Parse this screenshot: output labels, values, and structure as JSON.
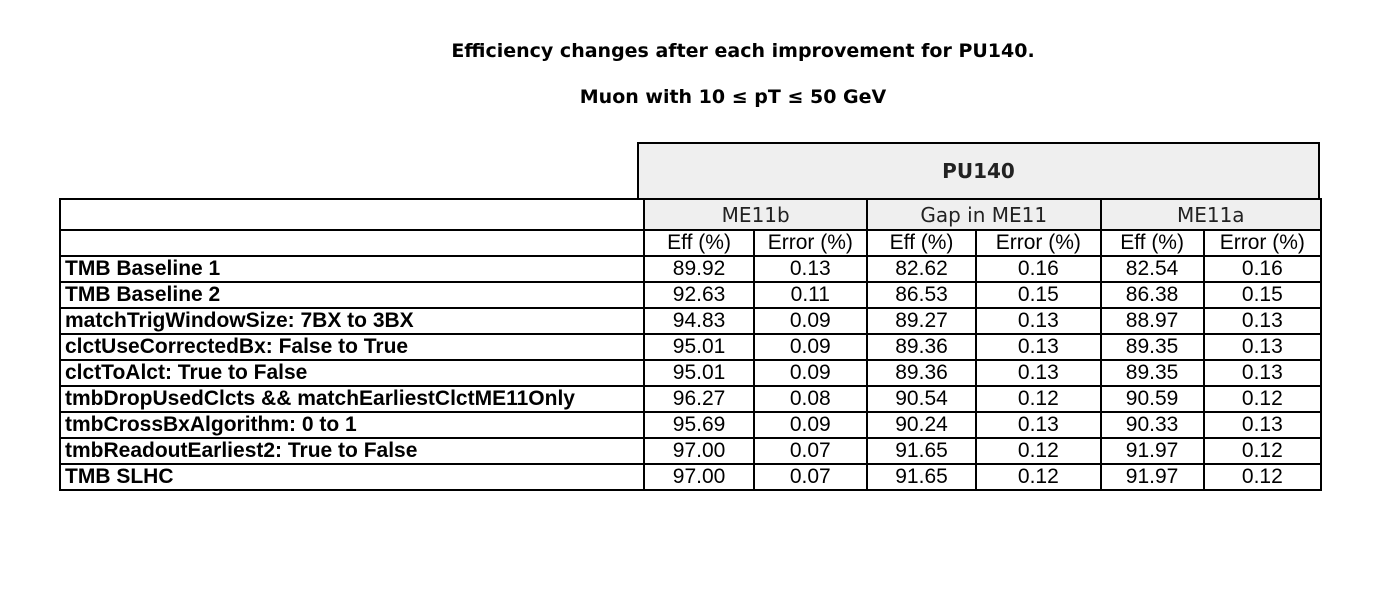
{
  "title": "Efficiency changes after each improvement for PU140.",
  "subtitle": "Muon with 10 ≤ pT ≤ 50  GeV",
  "table": {
    "pileup_label": "PU140",
    "groups": [
      "ME11b",
      "Gap in ME11",
      "ME11a"
    ],
    "columns": [
      "Eff (%)",
      "Error (%)",
      "Eff (%)",
      "Error (%)",
      "Eff (%)",
      "Error (%)"
    ],
    "rows": [
      {
        "label": "TMB Baseline 1",
        "values": [
          "89.92",
          "0.13",
          "82.62",
          "0.16",
          "82.54",
          "0.16"
        ]
      },
      {
        "label": "TMB Baseline 2",
        "values": [
          "92.63",
          "0.11",
          "86.53",
          "0.15",
          "86.38",
          "0.15"
        ]
      },
      {
        "label": "matchTrigWindowSize: 7BX to 3BX",
        "values": [
          "94.83",
          "0.09",
          "89.27",
          "0.13",
          "88.97",
          "0.13"
        ]
      },
      {
        "label": "clctUseCorrectedBx: False to True",
        "values": [
          "95.01",
          "0.09",
          "89.36",
          "0.13",
          "89.35",
          "0.13"
        ]
      },
      {
        "label": "clctToAlct: True to False",
        "values": [
          "95.01",
          "0.09",
          "89.36",
          "0.13",
          "89.35",
          "0.13"
        ]
      },
      {
        "label": "tmbDropUsedClcts && matchEarliestClctME11Only",
        "values": [
          "96.27",
          "0.08",
          "90.54",
          "0.12",
          "90.59",
          "0.12"
        ]
      },
      {
        "label": "tmbCrossBxAlgorithm: 0 to 1",
        "values": [
          "95.69",
          "0.09",
          "90.24",
          "0.13",
          "90.33",
          "0.13"
        ]
      },
      {
        "label": "tmbReadoutEarliest2: True to False",
        "values": [
          "97.00",
          "0.07",
          "91.65",
          "0.12",
          "91.97",
          "0.12"
        ]
      },
      {
        "label": "TMB SLHC",
        "values": [
          "97.00",
          "0.07",
          "91.65",
          "0.12",
          "91.97",
          "0.12"
        ]
      }
    ]
  }
}
